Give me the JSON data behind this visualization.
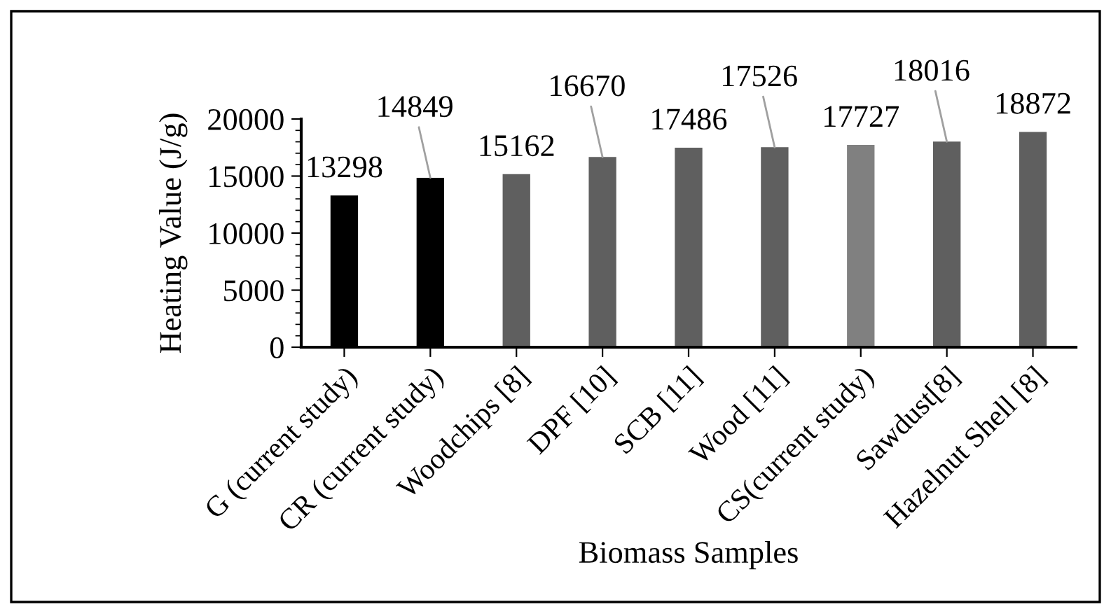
{
  "chart_data": {
    "type": "bar",
    "xlabel": "Biomass Samples",
    "ylabel": "Heating Value (J/g)",
    "categories": [
      "G (current study)",
      "CR (current study)",
      "Woodchips [8]",
      "DPF [10]",
      "SCB [11]",
      "Wood [11]",
      "CS(current study)",
      "Sawdust[8]",
      "Hazelnut Shell [8]"
    ],
    "values": [
      13298,
      14849,
      15162,
      16670,
      17486,
      17526,
      17727,
      18016,
      18872
    ],
    "colors": [
      "#000000",
      "#000000",
      "#5f5f5f",
      "#5f5f5f",
      "#5f5f5f",
      "#5f5f5f",
      "#808080",
      "#5f5f5f",
      "#5f5f5f"
    ],
    "ylim": [
      0,
      20000
    ],
    "yticks": [
      0,
      5000,
      10000,
      15000,
      20000
    ],
    "grid": false,
    "legend": false,
    "data_labels": true
  }
}
